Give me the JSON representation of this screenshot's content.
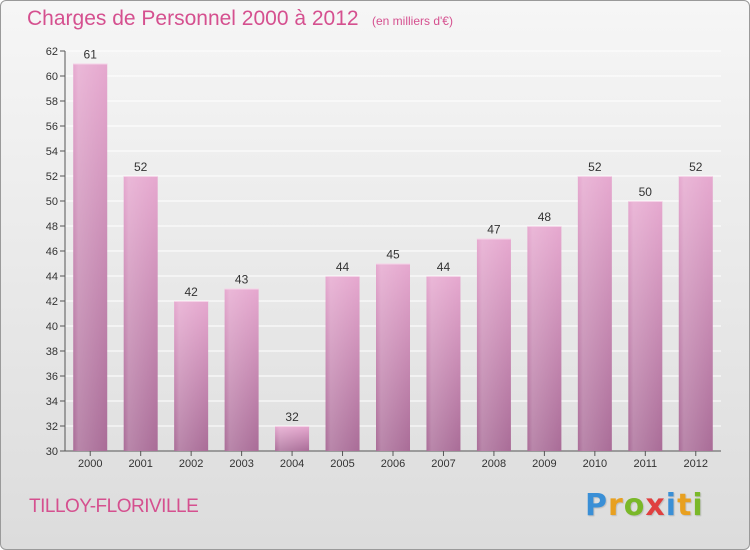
{
  "title": "Charges de Personnel 2000 à 2012",
  "subtitle": "(en milliers d'€)",
  "commune": "TILLOY-FLORIVILLE",
  "logo": {
    "letters": [
      "P",
      "r",
      "o",
      "x",
      "i",
      "t",
      "i"
    ],
    "colors": [
      "#3a8fd6",
      "#e8a020",
      "#7ab829",
      "#e04040",
      "#3a8fd6",
      "#e8a020",
      "#7ab829"
    ]
  },
  "colors": {
    "bar_top": "#e6a8cf",
    "bar_bottom": "#a96c97",
    "label": "#333333",
    "title": "#d5508f"
  },
  "chart_data": {
    "type": "bar",
    "categories": [
      "2000",
      "2001",
      "2002",
      "2003",
      "2004",
      "2005",
      "2006",
      "2007",
      "2008",
      "2009",
      "2010",
      "2011",
      "2012"
    ],
    "values": [
      61,
      52,
      42,
      43,
      32,
      44,
      45,
      44,
      47,
      48,
      52,
      50,
      52
    ],
    "data_labels": [
      "61",
      "52",
      "42",
      "43",
      "32",
      "44",
      "45",
      "44",
      "47",
      "48",
      "52",
      "50",
      "52"
    ],
    "ylim": [
      30,
      62
    ],
    "yticks": [
      30,
      32,
      34,
      36,
      38,
      40,
      42,
      44,
      46,
      48,
      50,
      52,
      54,
      56,
      58,
      60,
      62
    ],
    "ytick_labels": [
      "30",
      "32",
      "34",
      "36",
      "38",
      "40",
      "42",
      "44",
      "46",
      "48",
      "50",
      "52",
      "54",
      "56",
      "58",
      "60",
      "62"
    ],
    "grid": true,
    "xlabel": "",
    "ylabel": ""
  }
}
